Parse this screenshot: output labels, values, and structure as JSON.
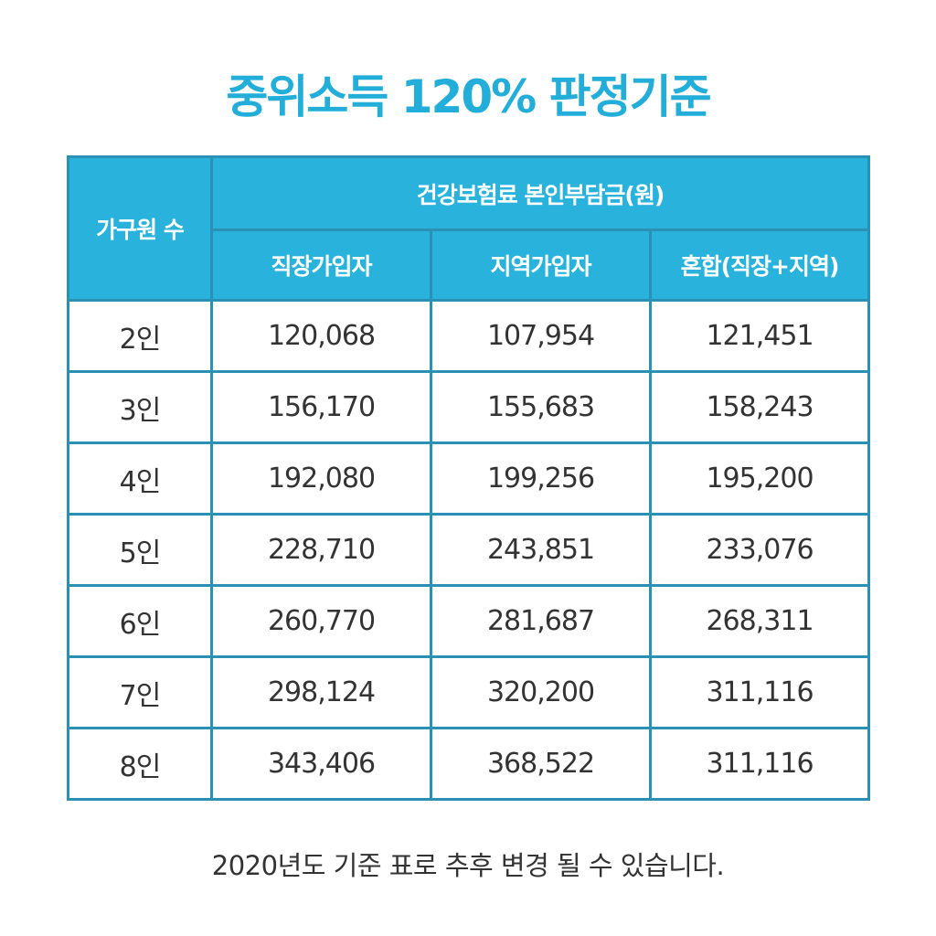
{
  "title": "중위소득 120% 판정기준",
  "table": {
    "header_household": "가구원 수",
    "header_group": "건강보험료 본인부담금(원)",
    "columns": [
      "직장가입자",
      "지역가입자",
      "혼합(직장+지역)"
    ],
    "rows": [
      {
        "label": "2인",
        "values": [
          "120,068",
          "107,954",
          "121,451"
        ]
      },
      {
        "label": "3인",
        "values": [
          "156,170",
          "155,683",
          "158,243"
        ]
      },
      {
        "label": "4인",
        "values": [
          "192,080",
          "199,256",
          "195,200"
        ]
      },
      {
        "label": "5인",
        "values": [
          "228,710",
          "243,851",
          "233,076"
        ]
      },
      {
        "label": "6인",
        "values": [
          "260,770",
          "281,687",
          "268,311"
        ]
      },
      {
        "label": "7인",
        "values": [
          "298,124",
          "320,200",
          "311,116"
        ]
      },
      {
        "label": "8인",
        "values": [
          "343,406",
          "368,522",
          "311,116"
        ]
      }
    ]
  },
  "footnote": "2020년도 기준 표로 추후 변경 될 수 있습니다.",
  "colors": {
    "accent": "#22aed8",
    "header_bg": "#29b3dc",
    "border": "#2a91b5",
    "text": "#333333"
  }
}
